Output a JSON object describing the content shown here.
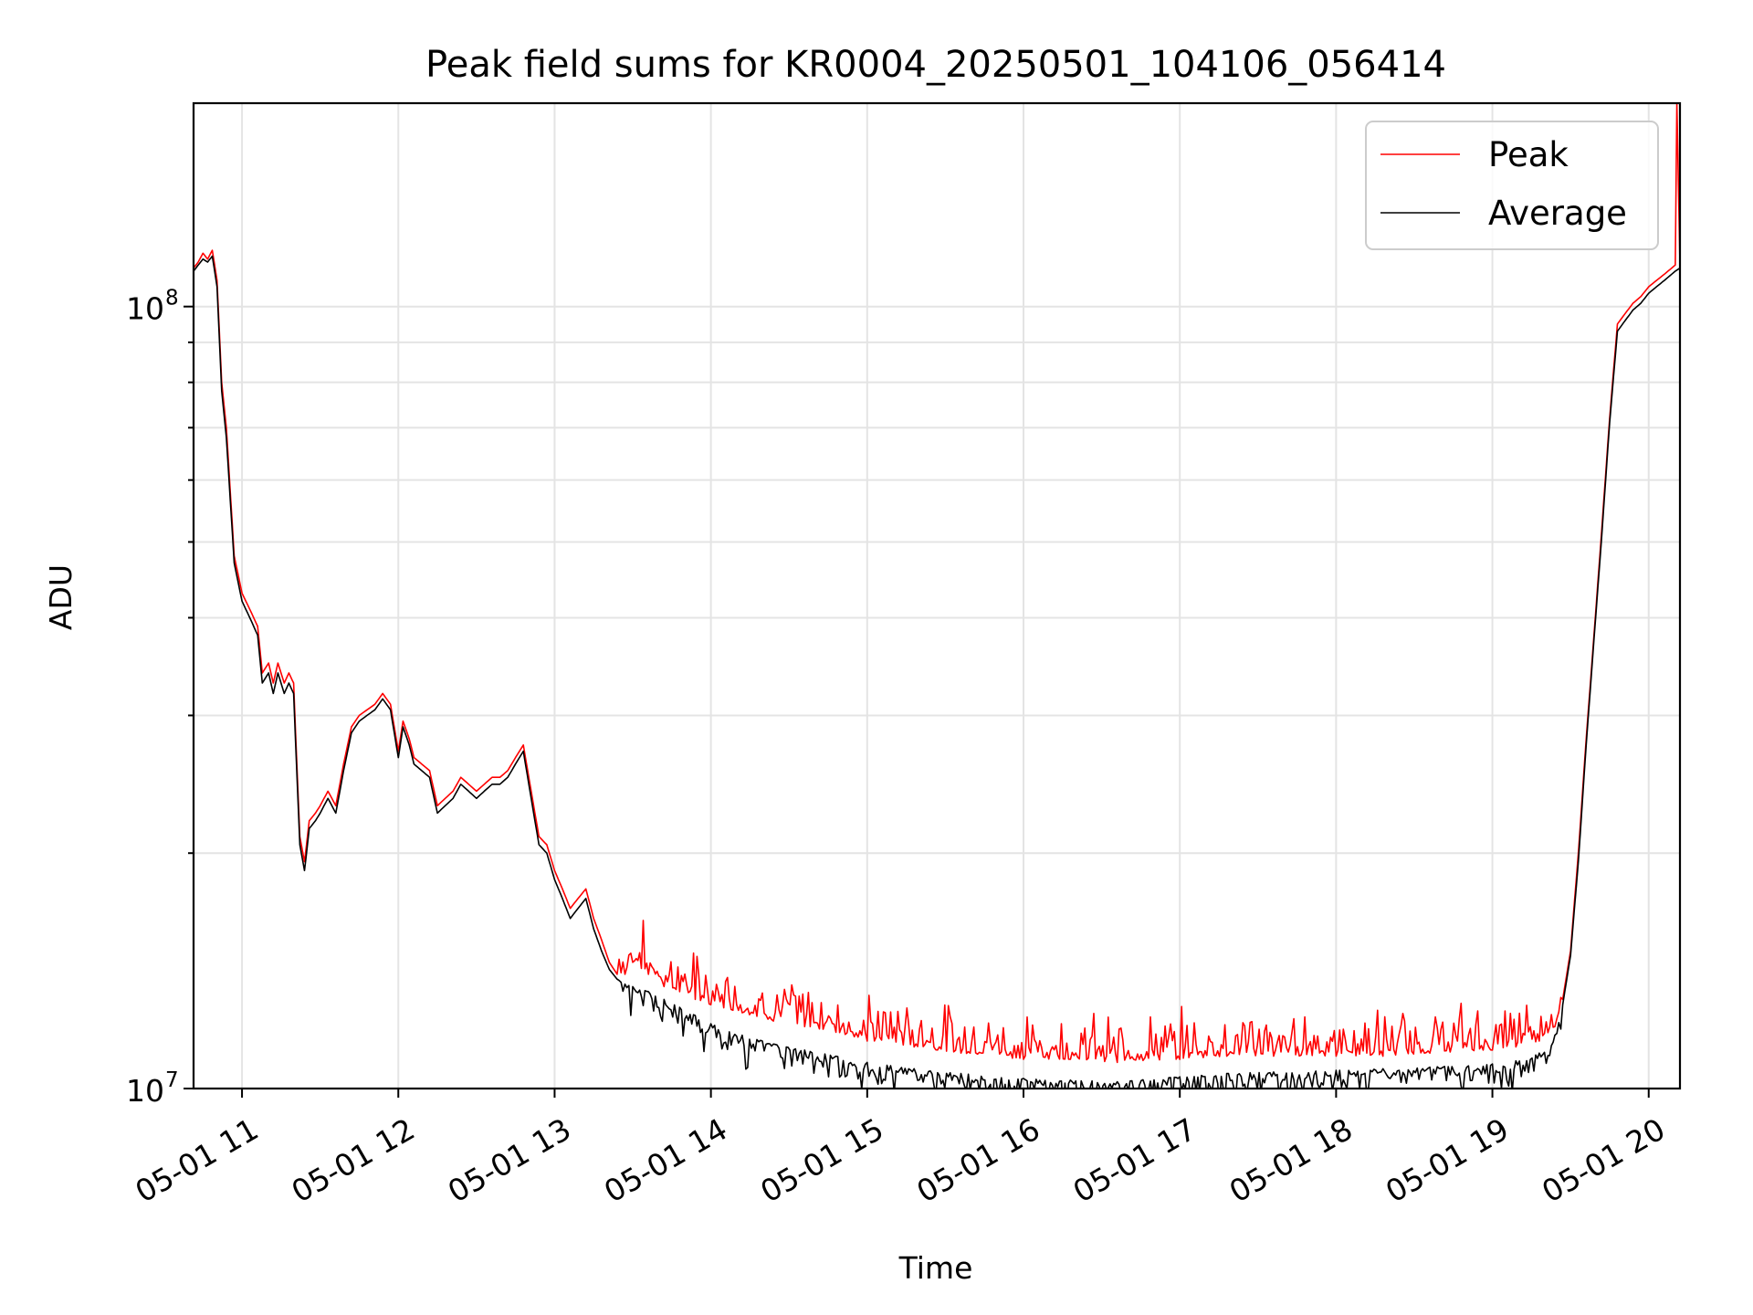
{
  "chart_data": {
    "type": "line",
    "title": "Peak field sums for KR0004_20250501_104106_056414",
    "xlabel": "Time",
    "ylabel": "ADU",
    "yscale": "log",
    "xlim": [
      10.69,
      20.2
    ],
    "ylim": [
      10000000,
      182000000
    ],
    "grid": true,
    "legend_position": "top-right",
    "x_ticks": [
      {
        "value": 11,
        "label": "05-01 11"
      },
      {
        "value": 12,
        "label": "05-01 12"
      },
      {
        "value": 13,
        "label": "05-01 13"
      },
      {
        "value": 14,
        "label": "05-01 14"
      },
      {
        "value": 15,
        "label": "05-01 15"
      },
      {
        "value": 16,
        "label": "05-01 16"
      },
      {
        "value": 17,
        "label": "05-01 17"
      },
      {
        "value": 18,
        "label": "05-01 18"
      },
      {
        "value": 19,
        "label": "05-01 19"
      },
      {
        "value": 20,
        "label": "05-01 20"
      }
    ],
    "y_major_ticks": [
      {
        "value": 10000000,
        "base": "10",
        "exponent": "7"
      },
      {
        "value": 100000000,
        "base": "10",
        "exponent": "8"
      }
    ],
    "y_minor_ticks": [
      20000000,
      30000000,
      40000000,
      50000000,
      60000000,
      70000000,
      80000000,
      90000000
    ],
    "series": [
      {
        "name": "Peak",
        "color": "#ff0000",
        "x": [
          10.69,
          10.72,
          10.75,
          10.78,
          10.81,
          10.84,
          10.87,
          10.9,
          10.95,
          11.0,
          11.05,
          11.1,
          11.13,
          11.17,
          11.2,
          11.23,
          11.27,
          11.3,
          11.33,
          11.37,
          11.4,
          11.43,
          11.47,
          11.5,
          11.55,
          11.6,
          11.65,
          11.7,
          11.75,
          11.8,
          11.85,
          11.9,
          11.95,
          12.0,
          12.03,
          12.07,
          12.1,
          12.15,
          12.2,
          12.25,
          12.3,
          12.35,
          12.4,
          12.45,
          12.5,
          12.55,
          12.6,
          12.65,
          12.7,
          12.75,
          12.8,
          12.85,
          12.9,
          12.95,
          13.0,
          13.05,
          13.1,
          13.15,
          13.2,
          13.25,
          13.3,
          13.35,
          13.4,
          13.45,
          13.5,
          13.6,
          13.7,
          13.8,
          13.9,
          14.0,
          14.2,
          14.4,
          14.6,
          14.8,
          15.0,
          15.3,
          15.6,
          16.0,
          16.3,
          16.6,
          17.0,
          17.3,
          17.6,
          18.0,
          18.3,
          18.6,
          19.0,
          19.15,
          19.3,
          19.4,
          19.45,
          19.5,
          19.55,
          19.6,
          19.65,
          19.7,
          19.75,
          19.8,
          19.85,
          19.9,
          19.95,
          20.0,
          20.05,
          20.1,
          20.17,
          20.18,
          20.2
        ],
        "values": [
          112000000,
          114000000,
          117000000,
          115000000,
          118000000,
          108000000,
          80000000,
          70000000,
          48000000,
          43000000,
          41000000,
          39000000,
          34000000,
          35000000,
          33000000,
          35000000,
          33000000,
          34000000,
          33000000,
          21000000,
          19500000,
          22000000,
          22500000,
          23000000,
          24000000,
          23000000,
          26000000,
          29000000,
          30000000,
          30500000,
          31000000,
          32000000,
          31000000,
          27000000,
          29500000,
          28000000,
          26500000,
          26000000,
          25500000,
          23000000,
          23500000,
          24000000,
          25000000,
          24500000,
          24000000,
          24500000,
          25000000,
          25000000,
          25500000,
          26500000,
          27500000,
          24000000,
          21000000,
          20500000,
          19000000,
          18000000,
          17000000,
          17500000,
          18000000,
          16500000,
          15500000,
          14500000,
          14000000,
          14000000,
          14500000,
          14000000,
          13500000,
          13300000,
          13000000,
          12800000,
          12500000,
          12200000,
          12000000,
          11800000,
          11500000,
          11300000,
          11100000,
          10900000,
          10900000,
          10800000,
          10900000,
          11000000,
          11000000,
          11000000,
          11000000,
          11100000,
          11200000,
          11300000,
          11500000,
          12000000,
          13000000,
          15000000,
          20000000,
          28000000,
          38000000,
          52000000,
          72000000,
          95000000,
          98000000,
          101000000,
          103000000,
          106000000,
          108000000,
          110000000,
          113000000,
          182000000,
          113000000
        ]
      },
      {
        "name": "Average",
        "color": "#000000",
        "x": [
          10.69,
          10.72,
          10.75,
          10.78,
          10.81,
          10.84,
          10.87,
          10.9,
          10.95,
          11.0,
          11.05,
          11.1,
          11.13,
          11.17,
          11.2,
          11.23,
          11.27,
          11.3,
          11.33,
          11.37,
          11.4,
          11.43,
          11.47,
          11.5,
          11.55,
          11.6,
          11.65,
          11.7,
          11.75,
          11.8,
          11.85,
          11.9,
          11.95,
          12.0,
          12.03,
          12.07,
          12.1,
          12.15,
          12.2,
          12.25,
          12.3,
          12.35,
          12.4,
          12.45,
          12.5,
          12.55,
          12.6,
          12.65,
          12.7,
          12.75,
          12.8,
          12.85,
          12.9,
          12.95,
          13.0,
          13.05,
          13.1,
          13.15,
          13.2,
          13.25,
          13.3,
          13.35,
          13.4,
          13.45,
          13.5,
          13.6,
          13.7,
          13.8,
          13.9,
          14.0,
          14.2,
          14.4,
          14.6,
          14.8,
          15.0,
          15.3,
          15.6,
          16.0,
          16.3,
          16.6,
          17.0,
          17.3,
          17.6,
          18.0,
          18.3,
          18.6,
          19.0,
          19.15,
          19.3,
          19.4,
          19.45,
          19.5,
          19.55,
          19.6,
          19.65,
          19.7,
          19.75,
          19.8,
          19.85,
          19.9,
          19.95,
          20.0,
          20.05,
          20.1,
          20.17,
          20.2
        ],
        "values": [
          111000000,
          113000000,
          115000000,
          114000000,
          116000000,
          106000000,
          78000000,
          68000000,
          47000000,
          42000000,
          40000000,
          38000000,
          33000000,
          34000000,
          32000000,
          34000000,
          32000000,
          33000000,
          32000000,
          20500000,
          19000000,
          21500000,
          22000000,
          22500000,
          23500000,
          22500000,
          25500000,
          28500000,
          29500000,
          30000000,
          30500000,
          31500000,
          30500000,
          26500000,
          29000000,
          27500000,
          26000000,
          25500000,
          25000000,
          22500000,
          23000000,
          23500000,
          24500000,
          24000000,
          23500000,
          24000000,
          24500000,
          24500000,
          25000000,
          26000000,
          27000000,
          23500000,
          20500000,
          20000000,
          18500000,
          17500000,
          16500000,
          17000000,
          17500000,
          16000000,
          15000000,
          14200000,
          13800000,
          13600000,
          13500000,
          13300000,
          13000000,
          12700000,
          12400000,
          12100000,
          11700000,
          11400000,
          11200000,
          11000000,
          10800000,
          10600000,
          10450000,
          10300000,
          10250000,
          10200000,
          10350000,
          10450000,
          10500000,
          10550000,
          10600000,
          10650000,
          10750000,
          10850000,
          11100000,
          11700000,
          12800000,
          14800000,
          19500000,
          27500000,
          37500000,
          51000000,
          71000000,
          93000000,
          96000000,
          99000000,
          101000000,
          104000000,
          106000000,
          108000000,
          111000000,
          112000000
        ]
      }
    ]
  }
}
